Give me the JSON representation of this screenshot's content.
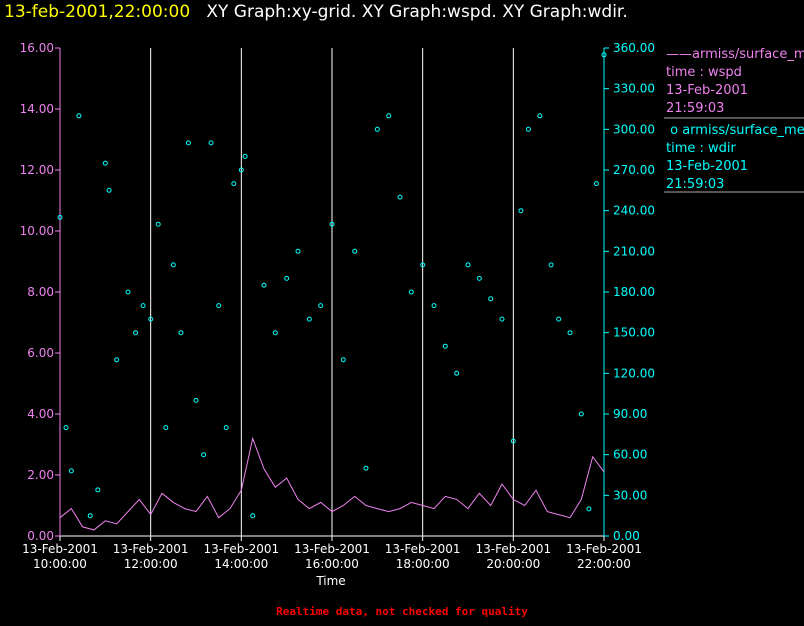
{
  "header": {
    "timestamp": "13-feb-2001,22:00:00",
    "graphs": "XY Graph:xy-grid.  XY Graph:wspd.  XY Graph:wdir."
  },
  "footer": "Realtime data, not checked for quality",
  "legend": [
    {
      "name": "armiss/surface_met",
      "field": "time : wspd",
      "date": "13-Feb-2001",
      "time": "21:59:03",
      "color": "#ee82ee"
    },
    {
      "name": "armiss/surface_met",
      "field": "time : wdir",
      "date": "13-Feb-2001",
      "time": "21:59:03",
      "color": "#00ffff"
    }
  ],
  "chart_data": {
    "type": "scatter",
    "xlabel": "Time",
    "x_ticks": [
      {
        "date": "13-Feb-2001",
        "time": "10:00:00"
      },
      {
        "date": "13-Feb-2001",
        "time": "12:00:00"
      },
      {
        "date": "13-Feb-2001",
        "time": "14:00:00"
      },
      {
        "date": "13-Feb-2001",
        "time": "16:00:00"
      },
      {
        "date": "13-Feb-2001",
        "time": "18:00:00"
      },
      {
        "date": "13-Feb-2001",
        "time": "20:00:00"
      },
      {
        "date": "13-Feb-2001",
        "time": "22:00:00"
      }
    ],
    "xlim": [
      "13-Feb-2001 10:00:00",
      "13-Feb-2001 22:00:00"
    ],
    "y_left": {
      "ticks": [
        "0.00",
        "2.00",
        "4.00",
        "6.00",
        "8.00",
        "10.00",
        "12.00",
        "14.00",
        "16.00"
      ],
      "ylim": [
        0,
        16
      ],
      "color": "#ee82ee"
    },
    "y_right": {
      "ticks": [
        "0.00",
        "30.00",
        "60.00",
        "90.00",
        "120.00",
        "150.00",
        "180.00",
        "210.00",
        "240.00",
        "270.00",
        "300.00",
        "330.00",
        "360.00"
      ],
      "ylim": [
        0,
        360
      ],
      "color": "#00ffff"
    },
    "vertical_grid": true,
    "series": [
      {
        "name": "time : wspd",
        "axis": "left",
        "style": "line",
        "color": "#ee82ee",
        "x": [
          "13-Feb-2001 10:00",
          "13-Feb-2001 10:15",
          "13-Feb-2001 10:30",
          "13-Feb-2001 10:45",
          "13-Feb-2001 11:00",
          "13-Feb-2001 11:15",
          "13-Feb-2001 11:30",
          "13-Feb-2001 11:45",
          "13-Feb-2001 12:00",
          "13-Feb-2001 12:15",
          "13-Feb-2001 12:30",
          "13-Feb-2001 12:45",
          "13-Feb-2001 13:00",
          "13-Feb-2001 13:15",
          "13-Feb-2001 13:30",
          "13-Feb-2001 13:45",
          "13-Feb-2001 14:00",
          "13-Feb-2001 14:15",
          "13-Feb-2001 14:30",
          "13-Feb-2001 14:45",
          "13-Feb-2001 15:00",
          "13-Feb-2001 15:15",
          "13-Feb-2001 15:30",
          "13-Feb-2001 15:45",
          "13-Feb-2001 16:00",
          "13-Feb-2001 16:15",
          "13-Feb-2001 16:30",
          "13-Feb-2001 16:45",
          "13-Feb-2001 17:00",
          "13-Feb-2001 17:15",
          "13-Feb-2001 17:30",
          "13-Feb-2001 17:45",
          "13-Feb-2001 18:00",
          "13-Feb-2001 18:15",
          "13-Feb-2001 18:30",
          "13-Feb-2001 18:45",
          "13-Feb-2001 19:00",
          "13-Feb-2001 19:15",
          "13-Feb-2001 19:30",
          "13-Feb-2001 19:45",
          "13-Feb-2001 20:00",
          "13-Feb-2001 20:15",
          "13-Feb-2001 20:30",
          "13-Feb-2001 20:45",
          "13-Feb-2001 21:00",
          "13-Feb-2001 21:15",
          "13-Feb-2001 21:30",
          "13-Feb-2001 21:45",
          "13-Feb-2001 22:00"
        ],
        "y": [
          0.6,
          0.9,
          0.3,
          0.2,
          0.5,
          0.4,
          0.8,
          1.2,
          0.7,
          1.4,
          1.1,
          0.9,
          0.8,
          1.3,
          0.6,
          0.9,
          1.5,
          3.2,
          2.2,
          1.6,
          1.9,
          1.2,
          0.9,
          1.1,
          0.8,
          1.0,
          1.3,
          1.0,
          0.9,
          0.8,
          0.9,
          1.1,
          1.0,
          0.9,
          1.3,
          1.2,
          0.9,
          1.4,
          1.0,
          1.7,
          1.2,
          1.0,
          1.5,
          0.8,
          0.7,
          0.6,
          1.2,
          2.6,
          2.1
        ]
      },
      {
        "name": "time : wdir",
        "axis": "right",
        "style": "markers",
        "color": "#00ffff",
        "x": [
          "13-Feb-2001 10:00",
          "13-Feb-2001 10:08",
          "13-Feb-2001 10:15",
          "13-Feb-2001 10:25",
          "13-Feb-2001 10:40",
          "13-Feb-2001 10:50",
          "13-Feb-2001 11:00",
          "13-Feb-2001 11:05",
          "13-Feb-2001 11:15",
          "13-Feb-2001 11:30",
          "13-Feb-2001 11:40",
          "13-Feb-2001 11:50",
          "13-Feb-2001 12:00",
          "13-Feb-2001 12:10",
          "13-Feb-2001 12:20",
          "13-Feb-2001 12:30",
          "13-Feb-2001 12:40",
          "13-Feb-2001 12:50",
          "13-Feb-2001 13:00",
          "13-Feb-2001 13:10",
          "13-Feb-2001 13:20",
          "13-Feb-2001 13:30",
          "13-Feb-2001 13:40",
          "13-Feb-2001 13:50",
          "13-Feb-2001 14:00",
          "13-Feb-2001 14:05",
          "13-Feb-2001 14:15",
          "13-Feb-2001 14:30",
          "13-Feb-2001 14:45",
          "13-Feb-2001 15:00",
          "13-Feb-2001 15:15",
          "13-Feb-2001 15:30",
          "13-Feb-2001 15:45",
          "13-Feb-2001 16:00",
          "13-Feb-2001 16:15",
          "13-Feb-2001 16:30",
          "13-Feb-2001 16:45",
          "13-Feb-2001 17:00",
          "13-Feb-2001 17:15",
          "13-Feb-2001 17:30",
          "13-Feb-2001 17:45",
          "13-Feb-2001 18:00",
          "13-Feb-2001 18:15",
          "13-Feb-2001 18:30",
          "13-Feb-2001 18:45",
          "13-Feb-2001 19:00",
          "13-Feb-2001 19:15",
          "13-Feb-2001 19:30",
          "13-Feb-2001 19:45",
          "13-Feb-2001 20:00",
          "13-Feb-2001 20:10",
          "13-Feb-2001 20:20",
          "13-Feb-2001 20:35",
          "13-Feb-2001 20:50",
          "13-Feb-2001 21:00",
          "13-Feb-2001 21:15",
          "13-Feb-2001 21:30",
          "13-Feb-2001 21:40",
          "13-Feb-2001 21:50",
          "13-Feb-2001 22:00"
        ],
        "y": [
          235,
          80,
          48,
          310,
          15,
          34,
          275,
          255,
          130,
          180,
          150,
          170,
          160,
          230,
          80,
          200,
          150,
          290,
          100,
          60,
          290,
          170,
          80,
          260,
          270,
          280,
          15,
          185,
          150,
          190,
          210,
          160,
          170,
          230,
          130,
          210,
          50,
          300,
          310,
          250,
          180,
          200,
          170,
          140,
          120,
          200,
          190,
          175,
          160,
          70,
          240,
          300,
          310,
          200,
          160,
          150,
          90,
          20,
          260,
          355
        ]
      }
    ]
  }
}
